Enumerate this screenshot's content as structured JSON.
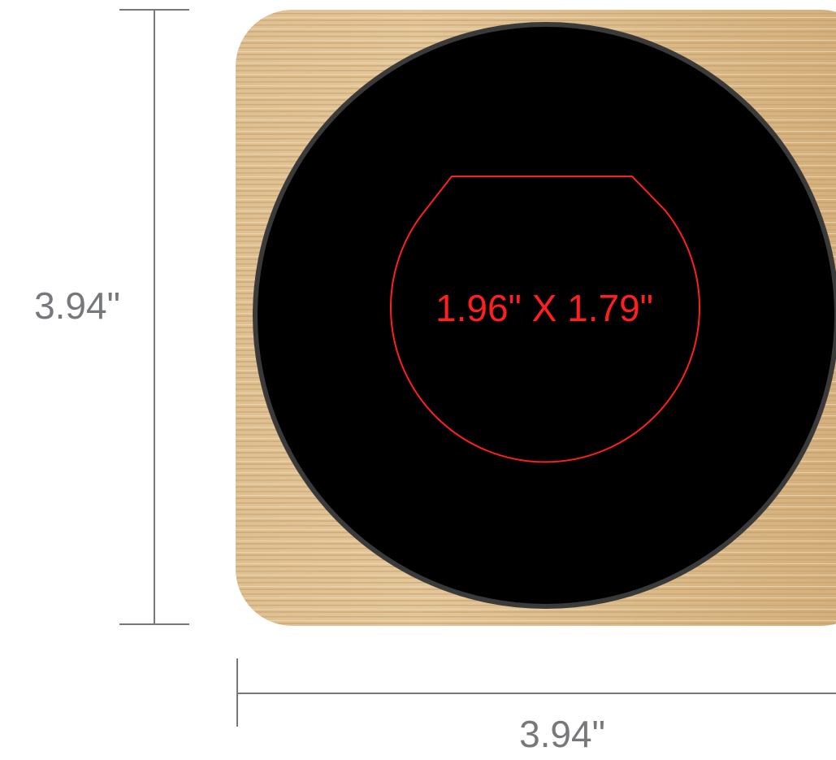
{
  "dimensions": {
    "height_label": "3.94\"",
    "width_label": "3.94\"",
    "imprint_label": "1.96\" X 1.79\""
  }
}
